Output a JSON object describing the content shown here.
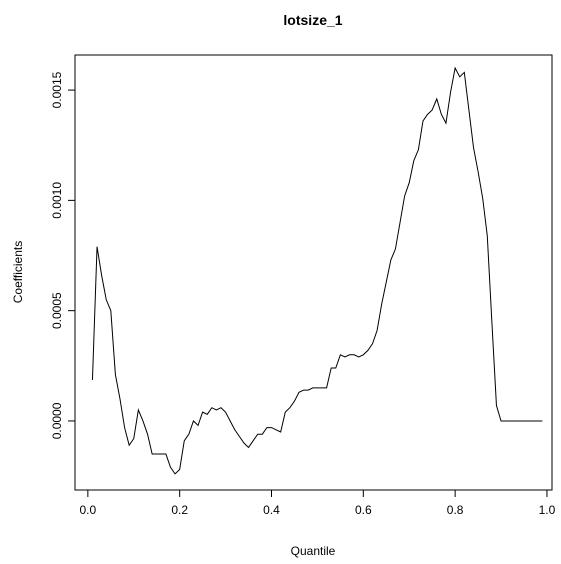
{
  "chart_data": {
    "type": "line",
    "title": "lotsize_1",
    "xlabel": "Quantile",
    "ylabel": "Coefficients",
    "color": "#000000",
    "x": [
      0.01,
      0.02,
      0.03,
      0.04,
      0.05,
      0.06,
      0.07,
      0.08,
      0.09,
      0.1,
      0.11,
      0.12,
      0.13,
      0.14,
      0.15,
      0.16,
      0.17,
      0.18,
      0.19,
      0.2,
      0.21,
      0.22,
      0.23,
      0.24,
      0.25,
      0.26,
      0.27,
      0.28,
      0.29,
      0.3,
      0.31,
      0.32,
      0.33,
      0.34,
      0.35,
      0.36,
      0.37,
      0.38,
      0.39,
      0.4,
      0.41,
      0.42,
      0.43,
      0.44,
      0.45,
      0.46,
      0.47,
      0.48,
      0.49,
      0.5,
      0.51,
      0.52,
      0.53,
      0.54,
      0.55,
      0.56,
      0.57,
      0.58,
      0.59,
      0.6,
      0.61,
      0.62,
      0.63,
      0.64,
      0.65,
      0.66,
      0.67,
      0.68,
      0.69,
      0.7,
      0.71,
      0.72,
      0.73,
      0.74,
      0.75,
      0.76,
      0.77,
      0.78,
      0.79,
      0.8,
      0.81,
      0.82,
      0.83,
      0.84,
      0.85,
      0.86,
      0.87,
      0.88,
      0.89,
      0.9,
      0.91,
      0.92,
      0.93,
      0.94,
      0.95,
      0.96,
      0.97,
      0.98,
      0.99
    ],
    "values": [
      0.000186,
      0.00079,
      0.00066,
      0.00055,
      0.0005,
      0.00021,
      0.0001,
      -3e-05,
      -0.00011,
      -8e-05,
      5e-05,
      0.0,
      -6e-05,
      -0.00015,
      -0.00015,
      -0.00015,
      -0.00015,
      -0.00021,
      -0.00024,
      -0.00022,
      -9e-05,
      -6e-05,
      0.0,
      -2e-05,
      4e-05,
      3e-05,
      6e-05,
      5e-05,
      6e-05,
      4e-05,
      0.0,
      -4e-05,
      -7e-05,
      -0.0001,
      -0.00012,
      -9e-05,
      -6e-05,
      -6e-05,
      -3e-05,
      -3e-05,
      -4e-05,
      -5e-05,
      4e-05,
      6e-05,
      9e-05,
      0.00013,
      0.00014,
      0.00014,
      0.00015,
      0.00015,
      0.00015,
      0.00015,
      0.00024,
      0.00024,
      0.0003,
      0.00029,
      0.0003,
      0.0003,
      0.00029,
      0.0003,
      0.00032,
      0.00035,
      0.00041,
      0.00053,
      0.00063,
      0.00073,
      0.00078,
      0.0009,
      0.00102,
      0.00108,
      0.00118,
      0.00123,
      0.00136,
      0.00139,
      0.00141,
      0.00146,
      0.00139,
      0.00135,
      0.00149,
      0.0016,
      0.00156,
      0.00158,
      0.00141,
      0.00124,
      0.00113,
      0.00101,
      0.00084,
      0.00045,
      7e-05,
      0.0,
      0.0,
      0.0,
      0.0,
      0.0,
      0.0,
      0.0,
      0.0,
      0.0,
      0.0
    ],
    "xlim": [
      -0.028,
      1.011
    ],
    "ylim": [
      -0.000313,
      0.001659
    ],
    "xticks": [
      {
        "value": 0,
        "label": "0.0"
      },
      0.2,
      0.4,
      0.6,
      0.8,
      {
        "value": 1,
        "label": "1.0"
      }
    ],
    "yticks": [
      {
        "value": 0,
        "label": "0.0000"
      },
      {
        "value": 0.0005,
        "label": "0.0005"
      },
      {
        "value": 0.001,
        "label": "0.0010"
      },
      {
        "value": 0.0015,
        "label": "0.0015"
      }
    ]
  }
}
